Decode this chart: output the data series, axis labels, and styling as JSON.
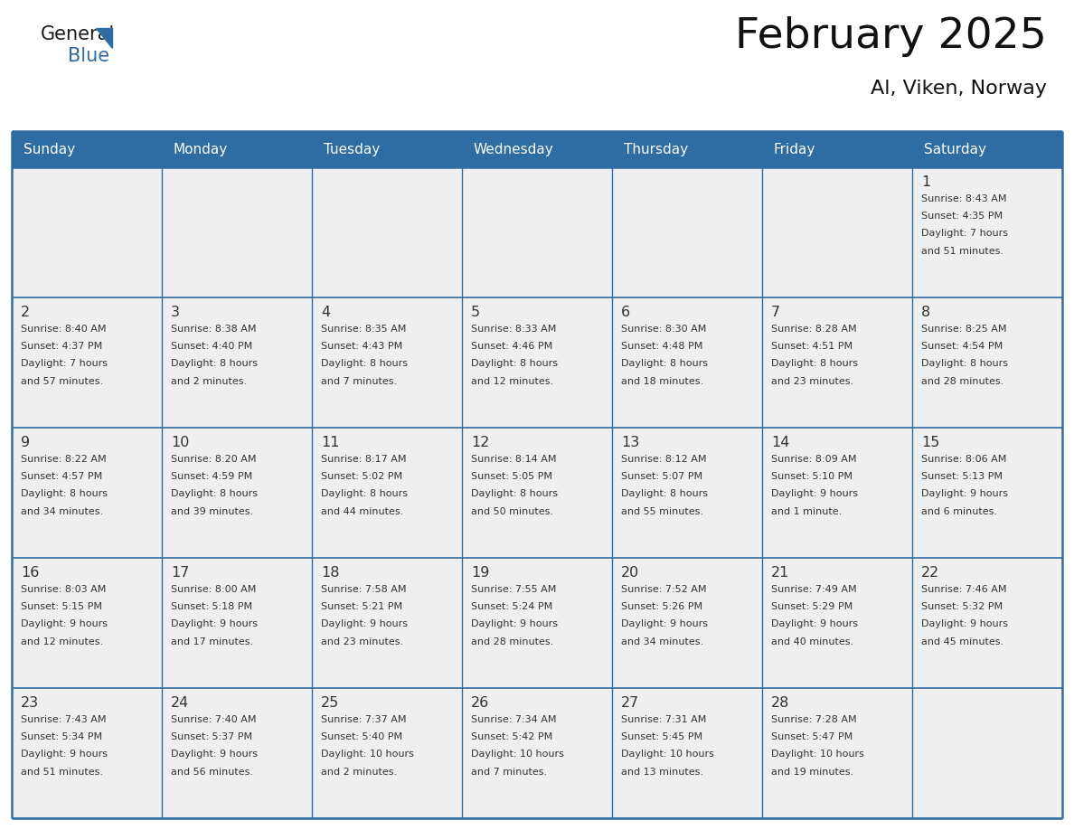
{
  "title": "February 2025",
  "subtitle": "Al, Viken, Norway",
  "days_of_week": [
    "Sunday",
    "Monday",
    "Tuesday",
    "Wednesday",
    "Thursday",
    "Friday",
    "Saturday"
  ],
  "header_bg": "#2E6DA4",
  "header_text": "#FFFFFF",
  "cell_bg_light": "#EFEFEF",
  "cell_bg_white": "#FFFFFF",
  "row1_bg": "#E8E8E8",
  "border_color": "#2E6DA4",
  "text_color": "#333333",
  "logo_color": "#2E6DA4",
  "logo_general_color": "#1a1a1a",
  "calendar_data": [
    [
      {
        "day": "",
        "info": ""
      },
      {
        "day": "",
        "info": ""
      },
      {
        "day": "",
        "info": ""
      },
      {
        "day": "",
        "info": ""
      },
      {
        "day": "",
        "info": ""
      },
      {
        "day": "",
        "info": ""
      },
      {
        "day": "1",
        "info": "Sunrise: 8:43 AM\nSunset: 4:35 PM\nDaylight: 7 hours\nand 51 minutes."
      }
    ],
    [
      {
        "day": "2",
        "info": "Sunrise: 8:40 AM\nSunset: 4:37 PM\nDaylight: 7 hours\nand 57 minutes."
      },
      {
        "day": "3",
        "info": "Sunrise: 8:38 AM\nSunset: 4:40 PM\nDaylight: 8 hours\nand 2 minutes."
      },
      {
        "day": "4",
        "info": "Sunrise: 8:35 AM\nSunset: 4:43 PM\nDaylight: 8 hours\nand 7 minutes."
      },
      {
        "day": "5",
        "info": "Sunrise: 8:33 AM\nSunset: 4:46 PM\nDaylight: 8 hours\nand 12 minutes."
      },
      {
        "day": "6",
        "info": "Sunrise: 8:30 AM\nSunset: 4:48 PM\nDaylight: 8 hours\nand 18 minutes."
      },
      {
        "day": "7",
        "info": "Sunrise: 8:28 AM\nSunset: 4:51 PM\nDaylight: 8 hours\nand 23 minutes."
      },
      {
        "day": "8",
        "info": "Sunrise: 8:25 AM\nSunset: 4:54 PM\nDaylight: 8 hours\nand 28 minutes."
      }
    ],
    [
      {
        "day": "9",
        "info": "Sunrise: 8:22 AM\nSunset: 4:57 PM\nDaylight: 8 hours\nand 34 minutes."
      },
      {
        "day": "10",
        "info": "Sunrise: 8:20 AM\nSunset: 4:59 PM\nDaylight: 8 hours\nand 39 minutes."
      },
      {
        "day": "11",
        "info": "Sunrise: 8:17 AM\nSunset: 5:02 PM\nDaylight: 8 hours\nand 44 minutes."
      },
      {
        "day": "12",
        "info": "Sunrise: 8:14 AM\nSunset: 5:05 PM\nDaylight: 8 hours\nand 50 minutes."
      },
      {
        "day": "13",
        "info": "Sunrise: 8:12 AM\nSunset: 5:07 PM\nDaylight: 8 hours\nand 55 minutes."
      },
      {
        "day": "14",
        "info": "Sunrise: 8:09 AM\nSunset: 5:10 PM\nDaylight: 9 hours\nand 1 minute."
      },
      {
        "day": "15",
        "info": "Sunrise: 8:06 AM\nSunset: 5:13 PM\nDaylight: 9 hours\nand 6 minutes."
      }
    ],
    [
      {
        "day": "16",
        "info": "Sunrise: 8:03 AM\nSunset: 5:15 PM\nDaylight: 9 hours\nand 12 minutes."
      },
      {
        "day": "17",
        "info": "Sunrise: 8:00 AM\nSunset: 5:18 PM\nDaylight: 9 hours\nand 17 minutes."
      },
      {
        "day": "18",
        "info": "Sunrise: 7:58 AM\nSunset: 5:21 PM\nDaylight: 9 hours\nand 23 minutes."
      },
      {
        "day": "19",
        "info": "Sunrise: 7:55 AM\nSunset: 5:24 PM\nDaylight: 9 hours\nand 28 minutes."
      },
      {
        "day": "20",
        "info": "Sunrise: 7:52 AM\nSunset: 5:26 PM\nDaylight: 9 hours\nand 34 minutes."
      },
      {
        "day": "21",
        "info": "Sunrise: 7:49 AM\nSunset: 5:29 PM\nDaylight: 9 hours\nand 40 minutes."
      },
      {
        "day": "22",
        "info": "Sunrise: 7:46 AM\nSunset: 5:32 PM\nDaylight: 9 hours\nand 45 minutes."
      }
    ],
    [
      {
        "day": "23",
        "info": "Sunrise: 7:43 AM\nSunset: 5:34 PM\nDaylight: 9 hours\nand 51 minutes."
      },
      {
        "day": "24",
        "info": "Sunrise: 7:40 AM\nSunset: 5:37 PM\nDaylight: 9 hours\nand 56 minutes."
      },
      {
        "day": "25",
        "info": "Sunrise: 7:37 AM\nSunset: 5:40 PM\nDaylight: 10 hours\nand 2 minutes."
      },
      {
        "day": "26",
        "info": "Sunrise: 7:34 AM\nSunset: 5:42 PM\nDaylight: 10 hours\nand 7 minutes."
      },
      {
        "day": "27",
        "info": "Sunrise: 7:31 AM\nSunset: 5:45 PM\nDaylight: 10 hours\nand 13 minutes."
      },
      {
        "day": "28",
        "info": "Sunrise: 7:28 AM\nSunset: 5:47 PM\nDaylight: 10 hours\nand 19 minutes."
      },
      {
        "day": "",
        "info": ""
      }
    ]
  ]
}
